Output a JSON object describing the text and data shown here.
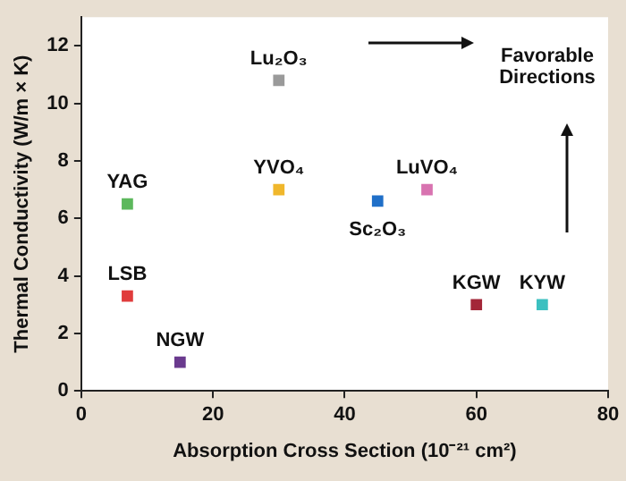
{
  "chart_data": {
    "type": "scatter",
    "xlabel": "Absorption Cross Section (10⁻²¹ cm²)",
    "ylabel": "Thermal Conductivity (W/m × K)",
    "xlim": [
      0,
      80
    ],
    "xticks": [
      0,
      20,
      40,
      60,
      80
    ],
    "ylim": [
      0,
      13
    ],
    "yticks": [
      0,
      2,
      4,
      6,
      8,
      10,
      12
    ],
    "grid": false,
    "legend": false,
    "marker": "square",
    "annotations": [
      "Favorable Directions"
    ],
    "series": [
      {
        "name": "YAG",
        "color": "#5cb85c",
        "x": [
          7
        ],
        "values": [
          6.5
        ]
      },
      {
        "name": "LSB",
        "color": "#e03c3c",
        "x": [
          7
        ],
        "values": [
          3.3
        ]
      },
      {
        "name": "NGW",
        "color": "#6a3a8e",
        "x": [
          15
        ],
        "values": [
          1
        ]
      },
      {
        "name": "Lu₂O₃",
        "color": "#9a9a9a",
        "x": [
          30
        ],
        "values": [
          10.8
        ]
      },
      {
        "name": "YVO₄",
        "color": "#f0b72c",
        "x": [
          30
        ],
        "values": [
          7
        ]
      },
      {
        "name": "Sc₂O₃",
        "color": "#1f6fc8",
        "x": [
          45
        ],
        "values": [
          6.6
        ]
      },
      {
        "name": "LuVO₄",
        "color": "#d873b0",
        "x": [
          52.5
        ],
        "values": [
          7
        ]
      },
      {
        "name": "KGW",
        "color": "#a32638",
        "x": [
          60
        ],
        "values": [
          3
        ]
      },
      {
        "name": "KYW",
        "color": "#3cc0c0",
        "x": [
          70
        ],
        "values": [
          3
        ]
      }
    ]
  }
}
